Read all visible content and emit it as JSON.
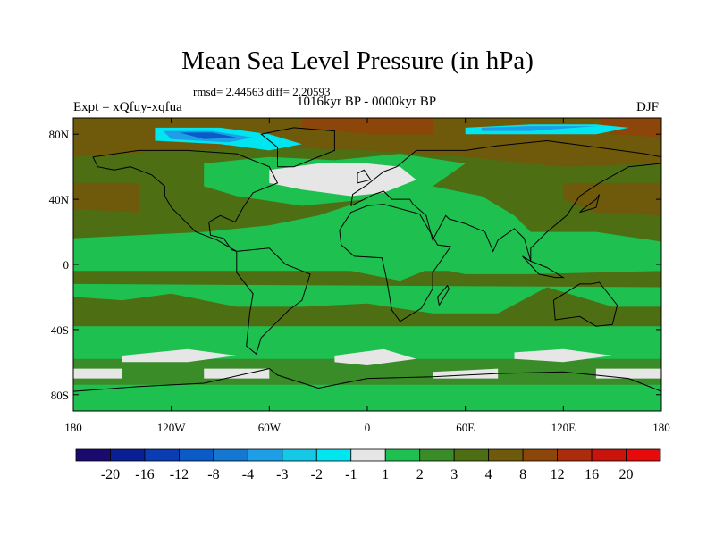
{
  "chart_data": {
    "type": "heatmap",
    "title": "Mean Sea Level Pressure (in hPa)",
    "stats_text": "rmsd= 2.44563  diff= 2.20593",
    "left_label": "Expt = xQfuy-xqfua",
    "center_label": "1016kyr BP - 0000kyr BP",
    "right_label": "DJF",
    "x_ticks": [
      "180",
      "120W",
      "60W",
      "0",
      "60E",
      "120E",
      "180"
    ],
    "x_tick_values": [
      -180,
      -120,
      -60,
      0,
      60,
      120,
      180
    ],
    "y_ticks": [
      "80N",
      "40N",
      "0",
      "40S",
      "80S"
    ],
    "y_tick_values": [
      80,
      40,
      0,
      -40,
      -80
    ],
    "xlim": [
      -180,
      180
    ],
    "ylim": [
      -90,
      90
    ],
    "colorbar": {
      "labels": [
        "-20",
        "-16",
        "-12",
        "-8",
        "-4",
        "-3",
        "-2",
        "-1",
        "1",
        "2",
        "3",
        "4",
        "8",
        "12",
        "16",
        "20"
      ],
      "colors": [
        "#1a0a6e",
        "#0a1e96",
        "#0a3cb4",
        "#0a5ac8",
        "#1478d2",
        "#1e9ee6",
        "#14c8e6",
        "#00e6f0",
        "#e6e6e6",
        "#1ec050",
        "#3a8c28",
        "#4e6e14",
        "#6e5a0a",
        "#8c460a",
        "#aa2c0a",
        "#c8140a",
        "#e60a0a"
      ]
    },
    "fields": {
      "background_value_range": "2 to 4",
      "note": "Field reproduced as approximate regions in data coordinates (lon, lat)"
    }
  }
}
